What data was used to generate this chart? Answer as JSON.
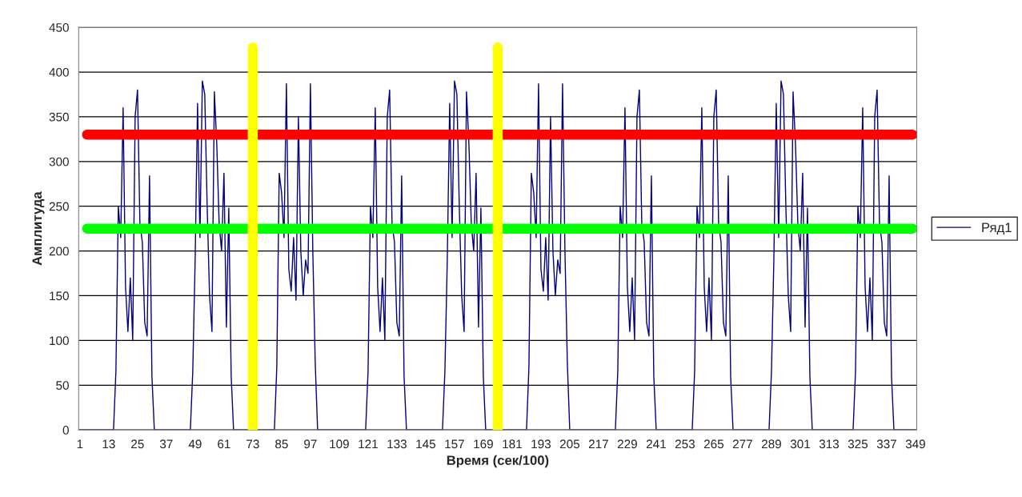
{
  "chart_data": {
    "type": "line",
    "xlabel": "Время (сек/100)",
    "ylabel": "Амплитуда",
    "xlim": [
      0.5,
      349.5
    ],
    "xticks": [
      1,
      13,
      25,
      37,
      49,
      61,
      73,
      85,
      97,
      109,
      121,
      133,
      145,
      157,
      169,
      181,
      193,
      205,
      217,
      229,
      241,
      253,
      265,
      277,
      289,
      301,
      313,
      325,
      337,
      349
    ],
    "ylim": [
      0,
      450
    ],
    "yticks": [
      0,
      50,
      100,
      150,
      200,
      250,
      300,
      350,
      400,
      450
    ],
    "grid": "y",
    "legend": "right",
    "marker": "none",
    "line_style": "solid",
    "series": [
      {
        "name": "Ряд1",
        "color": "#000080",
        "x": [
          1,
          15,
          16,
          17,
          18,
          19,
          20,
          21,
          22,
          23,
          24,
          25,
          26,
          27,
          28,
          29,
          30,
          31,
          32,
          47,
          48,
          49,
          50,
          51,
          52,
          53,
          54,
          55,
          56,
          57,
          58,
          59,
          60,
          61,
          62,
          63,
          64,
          65,
          82,
          83,
          84,
          85,
          86,
          87,
          88,
          89,
          90,
          91,
          92,
          93,
          94,
          95,
          96,
          97,
          98,
          99,
          100,
          120,
          121,
          122,
          123,
          124,
          125,
          126,
          127,
          128,
          129,
          130,
          131,
          132,
          133,
          134,
          135,
          136,
          137,
          152,
          153,
          154,
          155,
          156,
          157,
          158,
          159,
          160,
          161,
          162,
          163,
          164,
          165,
          166,
          167,
          168,
          169,
          170,
          187,
          188,
          189,
          190,
          191,
          192,
          193,
          194,
          195,
          196,
          197,
          198,
          199,
          200,
          201,
          202,
          203,
          204,
          205,
          224,
          225,
          226,
          227,
          228,
          229,
          230,
          231,
          232,
          233,
          234,
          235,
          236,
          237,
          238,
          239,
          240,
          241,
          256,
          257,
          258,
          259,
          260,
          261,
          262,
          263,
          264,
          265,
          266,
          267,
          268,
          269,
          270,
          271,
          272,
          273,
          288,
          289,
          290,
          291,
          292,
          293,
          294,
          295,
          296,
          297,
          298,
          299,
          300,
          301,
          302,
          303,
          304,
          305,
          306,
          323,
          324,
          325,
          326,
          327,
          328,
          329,
          330,
          331,
          332,
          333,
          334,
          335,
          336,
          337,
          338,
          339,
          340,
          349
        ],
        "values": [
          0,
          0,
          65,
          250,
          215,
          360,
          160,
          110,
          170,
          100,
          350,
          380,
          230,
          210,
          120,
          105,
          284,
          60,
          0,
          0,
          65,
          190,
          365,
          215,
          390,
          375,
          250,
          150,
          110,
          378,
          320,
          230,
          200,
          287,
          115,
          248,
          60,
          0,
          0,
          70,
          287,
          265,
          215,
          387,
          180,
          155,
          215,
          145,
          350,
          200,
          150,
          190,
          175,
          387,
          200,
          75,
          0,
          0,
          65,
          250,
          215,
          360,
          160,
          110,
          170,
          100,
          350,
          380,
          230,
          210,
          120,
          105,
          284,
          60,
          0,
          0,
          65,
          190,
          365,
          215,
          390,
          375,
          250,
          150,
          110,
          378,
          320,
          230,
          200,
          287,
          115,
          248,
          60,
          0,
          0,
          70,
          287,
          265,
          215,
          387,
          180,
          155,
          215,
          145,
          350,
          200,
          150,
          190,
          175,
          387,
          200,
          75,
          0,
          0,
          65,
          250,
          215,
          360,
          160,
          110,
          170,
          100,
          350,
          380,
          230,
          210,
          120,
          105,
          284,
          60,
          0,
          0,
          65,
          250,
          215,
          360,
          160,
          110,
          170,
          100,
          350,
          380,
          230,
          210,
          120,
          105,
          284,
          60,
          0,
          0,
          65,
          190,
          365,
          215,
          390,
          375,
          250,
          150,
          110,
          378,
          320,
          230,
          200,
          287,
          115,
          248,
          60,
          0,
          0,
          65,
          250,
          215,
          360,
          160,
          110,
          170,
          100,
          350,
          380,
          230,
          210,
          120,
          105,
          284,
          60,
          0,
          0
        ]
      }
    ],
    "ref_lines": [
      {
        "axis": "y",
        "value": 330,
        "color": "#ff0000"
      },
      {
        "axis": "y",
        "value": 225,
        "color": "#00ff00"
      },
      {
        "axis": "x",
        "value": 73,
        "color": "#ffff00"
      },
      {
        "axis": "x",
        "value": 175,
        "color": "#ffff00"
      }
    ]
  }
}
